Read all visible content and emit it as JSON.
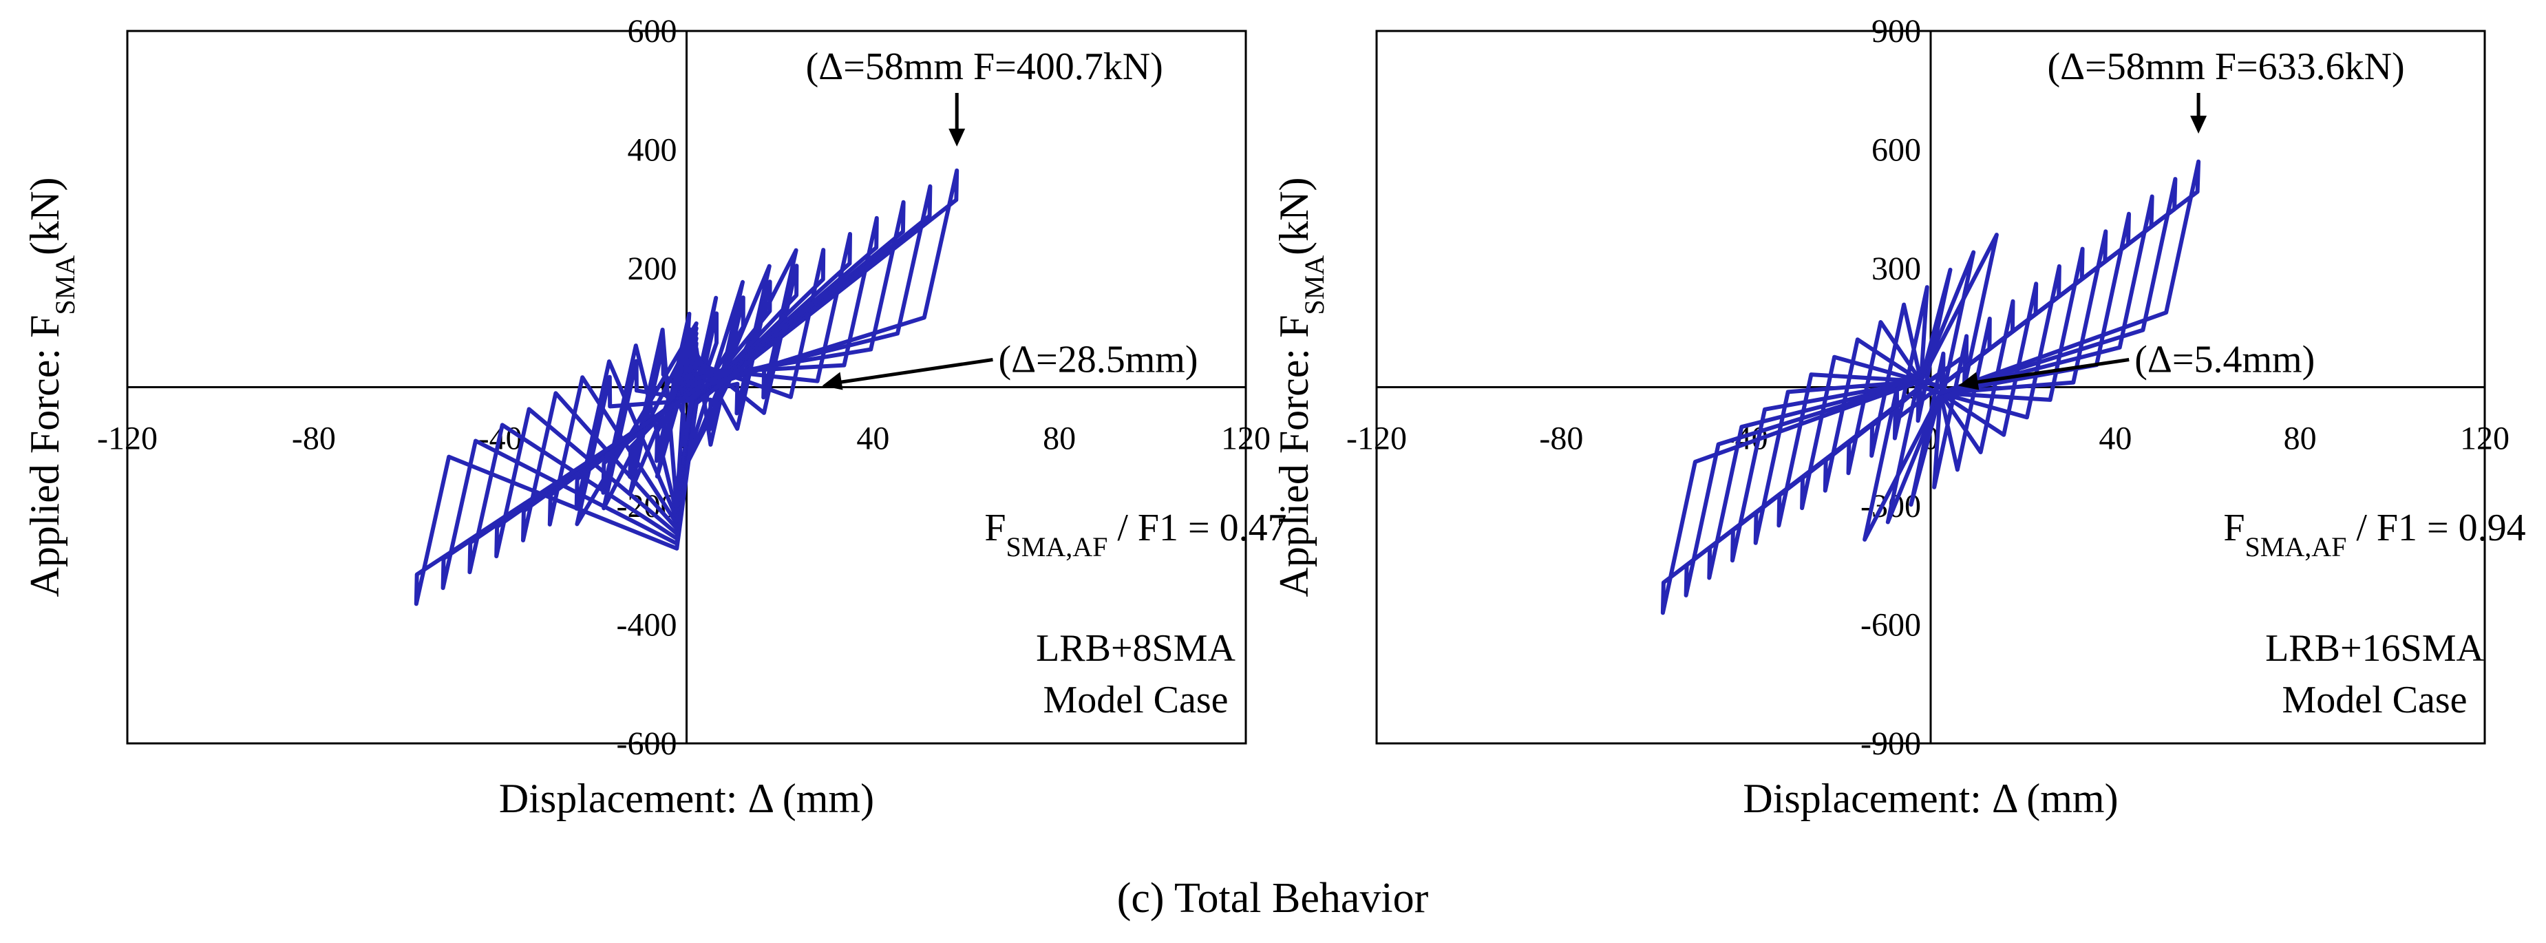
{
  "figure": {
    "caption": "(c) Total Behavior"
  },
  "colors": {
    "series": "#2626b5",
    "axis": "#000000"
  },
  "chart_data": [
    {
      "type": "line",
      "series_name": "LRB+8SMA hysteresis",
      "xlabel": "Displacement: Δ (mm)",
      "ylabel": "Applied Force: F",
      "ylabel_sub": "SMA",
      "ylabel_tail": "(kN)",
      "xlim": [
        -120,
        120
      ],
      "ylim": [
        -600,
        600
      ],
      "xticks": [
        -120,
        -80,
        -40,
        0,
        40,
        80,
        120
      ],
      "yticks": [
        600,
        400,
        200,
        0,
        -200,
        -400,
        -600
      ],
      "xtick_labels": [
        "-120",
        "-80",
        "-40",
        "0",
        "40",
        "80",
        "120"
      ],
      "ytick_labels": [
        "600",
        "400",
        "200",
        "0",
        "-200",
        "-400",
        "-600"
      ],
      "hysteresis": {
        "d_peaks": [
          6,
          10,
          14,
          18,
          22,
          26,
          30,
          34,
          38,
          42,
          46,
          50,
          54,
          58
        ],
        "ub_start": [
          -16.5,
          17.2
        ],
        "ub_end": [
          58,
          365
        ],
        "lt_start": [
          16.5,
          -17.2
        ],
        "lt_end": [
          -58,
          -365
        ],
        "yield_disp": 7,
        "elastic_slope": 35.4,
        "f_origin": 120,
        "r_origin": -150,
        "f_slope": -2.1,
        "r_slope": -2.1,
        "peak_disp": 58,
        "peak_force": 400.7,
        "hardening_start": 54,
        "lower_shift": 150,
        "lower_floor": 12,
        "lower_ref_disp": 60
      },
      "peak_annotation": "(Δ=58mm F=400.7kN)",
      "peak_point": [
        58,
        400.7
      ],
      "lower_annotation": "(Δ=28.5mm)",
      "lower_point": [
        28.5,
        0
      ],
      "ratio_main": "F",
      "ratio_sub": "SMA,AF",
      "ratio_tail": " / F1 = 0.47",
      "case_line1": "LRB+8SMA",
      "case_line2": "Model Case"
    },
    {
      "type": "line",
      "series_name": "LRB+16SMA hysteresis",
      "xlabel": "Displacement: Δ (mm)",
      "ylabel": "Applied Force: F",
      "ylabel_sub": "SMA",
      "ylabel_tail": "(kN)",
      "xlim": [
        -120,
        120
      ],
      "ylim": [
        -900,
        900
      ],
      "xticks": [
        -120,
        -80,
        -40,
        0,
        40,
        80,
        120
      ],
      "yticks": [
        900,
        600,
        300,
        0,
        -300,
        -600,
        -900
      ],
      "xtick_labels": [
        "-120",
        "-80",
        "-40",
        "0",
        "40",
        "80",
        "120"
      ],
      "ytick_labels": [
        "900",
        "600",
        "300",
        "0",
        "-300",
        "-600",
        "-900"
      ],
      "hysteresis": {
        "d_peaks": [
          6,
          10,
          14,
          18,
          22,
          26,
          30,
          34,
          38,
          42,
          46,
          50,
          54,
          58
        ],
        "ub_start": [
          -7.3,
          -3.5
        ],
        "ub_end": [
          58,
          570
        ],
        "lt_start": [
          7.3,
          3.5
        ],
        "lt_end": [
          -58,
          -570
        ],
        "yield_disp": 7,
        "elastic_slope": 54.5,
        "f_origin": -15,
        "r_origin": 15,
        "f_slope": 0.0,
        "r_slope": 0.0,
        "peak_disp": 58,
        "peak_force": 633.6,
        "hardening_start": 54,
        "lower_shift": 400,
        "lower_floor": 30,
        "lower_ref_disp": 60
      },
      "peak_annotation": "(Δ=58mm F=633.6kN)",
      "peak_point": [
        58,
        633.6
      ],
      "lower_annotation": "(Δ=5.4mm)",
      "lower_point": [
        5.4,
        0
      ],
      "ratio_main": "F",
      "ratio_sub": "SMA,AF",
      "ratio_tail": " / F1 = 0.94",
      "case_line1": "LRB+16SMA",
      "case_line2": "Model Case"
    }
  ]
}
